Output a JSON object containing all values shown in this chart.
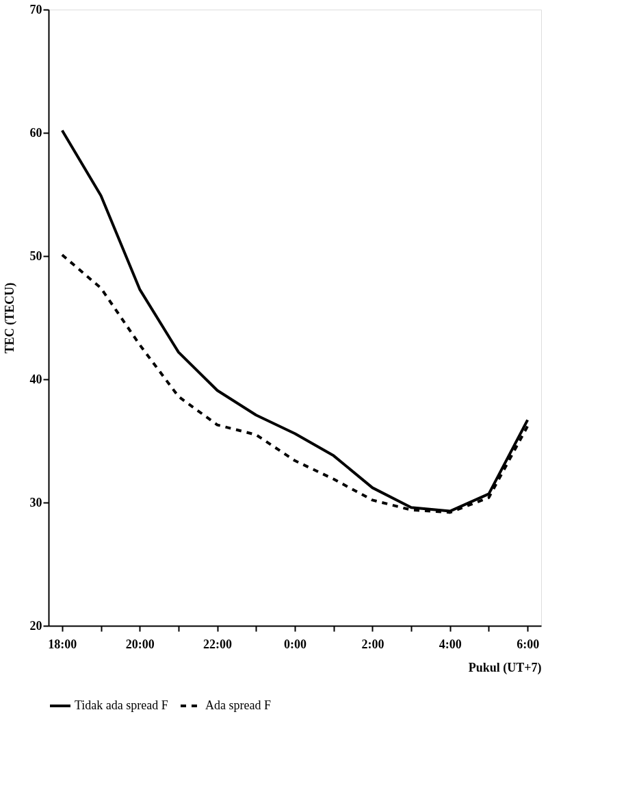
{
  "chart_data": {
    "type": "line",
    "xlabel": "Pukul (UT+7)",
    "ylabel": "TEC (TECU)",
    "categories": [
      "18:00",
      null,
      "20:00",
      null,
      "22:00",
      null,
      "0:00",
      null,
      "2:00",
      null,
      "4:00",
      null,
      "6:00"
    ],
    "series": [
      {
        "name": "Tidak ada spread F",
        "color": "#000000",
        "line_style": "solid",
        "values": [
          60.2,
          54.9,
          47.3,
          42.2,
          39.1,
          37.1,
          35.6,
          33.8,
          31.2,
          29.6,
          29.3,
          30.7,
          36.7
        ]
      },
      {
        "name": "Ada spread F",
        "color": "#000000",
        "line_style": "dashed",
        "values": [
          50.1,
          47.4,
          42.8,
          38.6,
          36.3,
          35.5,
          33.4,
          31.9,
          30.2,
          29.4,
          29.2,
          30.4,
          36.2
        ]
      }
    ],
    "ylim": [
      20,
      70
    ],
    "yticks": [
      20,
      30,
      40,
      50,
      60,
      70
    ],
    "grid": false,
    "legend": "bottom",
    "marker": "none"
  }
}
